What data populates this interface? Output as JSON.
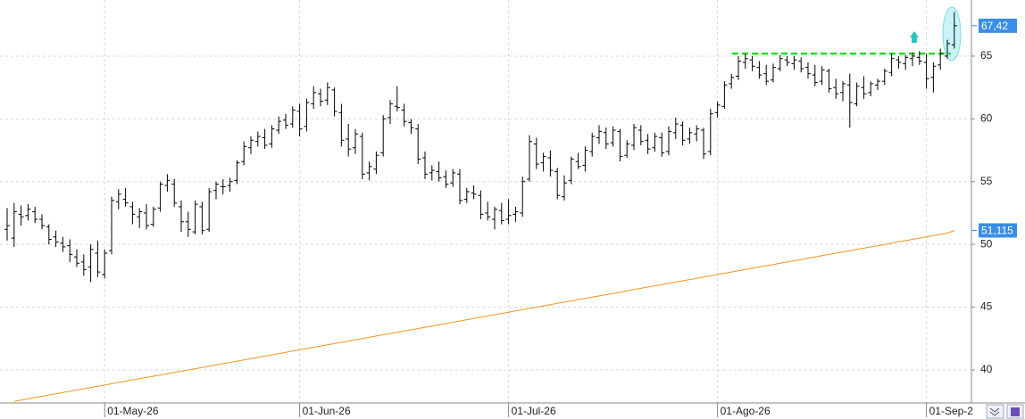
{
  "chart_data": {
    "type": "ohlc",
    "ylim": [
      37.37,
      69.47
    ],
    "yticks": [
      40,
      45,
      50,
      55,
      60,
      65
    ],
    "grid": true,
    "bar_color": "#000000",
    "categories": [
      null,
      null,
      null,
      null,
      null,
      null,
      null,
      null,
      null,
      null,
      null,
      null,
      null,
      null,
      "01-May-26",
      null,
      null,
      null,
      null,
      null,
      null,
      null,
      null,
      null,
      null,
      null,
      null,
      null,
      null,
      null,
      null,
      null,
      null,
      null,
      null,
      null,
      null,
      null,
      null,
      null,
      null,
      null,
      "01-Jun-26",
      null,
      null,
      null,
      null,
      null,
      null,
      null,
      null,
      null,
      null,
      null,
      null,
      null,
      null,
      null,
      null,
      null,
      null,
      null,
      null,
      null,
      null,
      null,
      null,
      null,
      null,
      null,
      null,
      null,
      "01-Jul-26",
      null,
      null,
      null,
      null,
      null,
      null,
      null,
      null,
      null,
      null,
      null,
      null,
      null,
      null,
      null,
      null,
      null,
      null,
      null,
      null,
      null,
      null,
      null,
      null,
      null,
      null,
      null,
      null,
      null,
      "01-Ago-26",
      null,
      null,
      null,
      null,
      null,
      null,
      null,
      null,
      null,
      null,
      null,
      null,
      null,
      null,
      null,
      null,
      null,
      null,
      null,
      null,
      null,
      null,
      null,
      null,
      null,
      null,
      null,
      null,
      null,
      "01-Sep-2",
      null,
      null,
      null,
      null
    ],
    "ohlc": [
      [
        51.2,
        52.9,
        50.3,
        51.5
      ],
      [
        50.5,
        53.3,
        49.8,
        52.6
      ],
      [
        52.4,
        53.1,
        51.5,
        52.2
      ],
      [
        52.3,
        53.2,
        51.9,
        52.8
      ],
      [
        52.6,
        53.0,
        51.7,
        52.0
      ],
      [
        52.0,
        52.4,
        51.2,
        51.5
      ],
      [
        51.4,
        51.6,
        50.0,
        50.4
      ],
      [
        50.6,
        51.1,
        49.8,
        50.2
      ],
      [
        50.1,
        50.6,
        49.4,
        49.8
      ],
      [
        49.9,
        50.4,
        48.6,
        49.2
      ],
      [
        49.0,
        49.6,
        48.2,
        48.5
      ],
      [
        48.6,
        49.2,
        47.5,
        48.0
      ],
      [
        48.2,
        50.0,
        47.0,
        49.6
      ],
      [
        49.3,
        50.3,
        47.4,
        47.8
      ],
      [
        47.6,
        49.6,
        47.3,
        49.3
      ],
      [
        49.5,
        53.8,
        49.2,
        53.5
      ],
      [
        53.4,
        54.4,
        52.8,
        54.0
      ],
      [
        53.6,
        54.5,
        53.0,
        53.3
      ],
      [
        53.0,
        53.4,
        51.6,
        52.4
      ],
      [
        52.2,
        52.9,
        51.3,
        52.6
      ],
      [
        52.5,
        53.2,
        51.2,
        51.5
      ],
      [
        51.6,
        53.0,
        51.4,
        52.8
      ],
      [
        52.9,
        55.0,
        52.6,
        54.8
      ],
      [
        54.7,
        55.6,
        54.2,
        55.1
      ],
      [
        54.8,
        55.2,
        53.0,
        53.3
      ],
      [
        53.0,
        53.5,
        51.0,
        51.8
      ],
      [
        51.8,
        52.6,
        50.6,
        51.2
      ],
      [
        51.0,
        53.5,
        50.8,
        53.2
      ],
      [
        53.0,
        53.4,
        50.8,
        51.1
      ],
      [
        51.2,
        54.5,
        51.0,
        54.2
      ],
      [
        54.3,
        55.0,
        53.6,
        54.8
      ],
      [
        54.6,
        55.2,
        54.0,
        54.6
      ],
      [
        54.7,
        55.3,
        54.2,
        55.0
      ],
      [
        55.1,
        56.7,
        54.8,
        56.5
      ],
      [
        56.6,
        58.2,
        56.3,
        57.8
      ],
      [
        57.7,
        58.6,
        57.2,
        58.3
      ],
      [
        58.2,
        59.0,
        57.8,
        58.6
      ],
      [
        58.5,
        59.2,
        57.6,
        57.9
      ],
      [
        58.0,
        59.5,
        57.7,
        59.2
      ],
      [
        59.1,
        60.2,
        58.8,
        59.8
      ],
      [
        59.9,
        60.4,
        59.2,
        59.5
      ],
      [
        59.6,
        61.0,
        59.3,
        60.7
      ],
      [
        60.6,
        61.2,
        58.6,
        59.2
      ],
      [
        59.4,
        61.6,
        59.0,
        61.3
      ],
      [
        61.2,
        62.6,
        60.8,
        62.1
      ],
      [
        62.0,
        62.4,
        61.0,
        61.4
      ],
      [
        61.5,
        62.9,
        61.1,
        62.5
      ],
      [
        62.3,
        62.5,
        60.2,
        60.6
      ],
      [
        60.5,
        61.2,
        57.8,
        58.3
      ],
      [
        58.4,
        59.6,
        57.0,
        57.6
      ],
      [
        57.7,
        59.2,
        57.2,
        58.8
      ],
      [
        58.6,
        58.9,
        55.2,
        55.6
      ],
      [
        55.7,
        56.6,
        55.1,
        56.2
      ],
      [
        56.0,
        57.4,
        55.6,
        57.1
      ],
      [
        57.3,
        60.3,
        57.0,
        60.0
      ],
      [
        60.1,
        61.5,
        59.6,
        61.2
      ],
      [
        61.0,
        62.6,
        60.6,
        60.9
      ],
      [
        60.7,
        61.2,
        59.4,
        59.8
      ],
      [
        59.7,
        60.0,
        58.8,
        59.3
      ],
      [
        59.2,
        59.6,
        56.4,
        56.8
      ],
      [
        56.9,
        57.4,
        55.2,
        55.6
      ],
      [
        55.7,
        56.3,
        55.1,
        55.9
      ],
      [
        55.8,
        56.6,
        55.0,
        55.3
      ],
      [
        55.4,
        55.9,
        54.5,
        54.8
      ],
      [
        54.9,
        56.0,
        54.6,
        55.7
      ],
      [
        55.6,
        56.0,
        53.2,
        53.5
      ],
      [
        53.6,
        54.5,
        53.3,
        54.2
      ],
      [
        54.1,
        54.7,
        53.6,
        54.0
      ],
      [
        53.9,
        54.3,
        52.0,
        52.4
      ],
      [
        52.5,
        53.4,
        51.9,
        52.2
      ],
      [
        52.0,
        53.0,
        51.2,
        52.8
      ],
      [
        52.7,
        53.3,
        51.6,
        51.9
      ],
      [
        52.0,
        53.6,
        51.6,
        52.3
      ],
      [
        52.4,
        53.0,
        51.8,
        52.6
      ],
      [
        52.5,
        55.4,
        52.2,
        55.0
      ],
      [
        55.2,
        58.7,
        55.0,
        58.2
      ],
      [
        58.0,
        58.5,
        56.0,
        56.4
      ],
      [
        56.5,
        57.3,
        55.8,
        57.0
      ],
      [
        56.9,
        57.5,
        55.4,
        55.9
      ],
      [
        55.8,
        56.1,
        53.6,
        53.9
      ],
      [
        53.8,
        55.5,
        53.5,
        54.9
      ],
      [
        55.1,
        57.0,
        54.8,
        56.8
      ],
      [
        56.6,
        57.3,
        56.0,
        56.2
      ],
      [
        56.3,
        57.8,
        55.8,
        57.5
      ],
      [
        57.4,
        58.9,
        57.0,
        58.6
      ],
      [
        58.5,
        59.5,
        58.0,
        59.0
      ],
      [
        58.9,
        59.3,
        57.6,
        58.0
      ],
      [
        58.1,
        59.4,
        57.8,
        59.1
      ],
      [
        59.0,
        59.2,
        56.6,
        57.0
      ],
      [
        57.1,
        58.3,
        56.9,
        58.0
      ],
      [
        57.9,
        59.6,
        57.5,
        59.3
      ],
      [
        59.1,
        59.5,
        57.9,
        58.2
      ],
      [
        58.3,
        58.8,
        57.2,
        57.6
      ],
      [
        57.7,
        58.9,
        57.4,
        58.6
      ],
      [
        58.5,
        58.9,
        57.0,
        57.3
      ],
      [
        57.4,
        59.4,
        57.1,
        59.0
      ],
      [
        58.9,
        60.1,
        58.4,
        59.6
      ],
      [
        59.5,
        59.8,
        57.9,
        58.3
      ],
      [
        58.4,
        59.3,
        58.0,
        58.9
      ],
      [
        58.8,
        59.5,
        58.2,
        59.2
      ],
      [
        59.1,
        59.3,
        56.8,
        57.2
      ],
      [
        57.4,
        60.8,
        57.1,
        60.4
      ],
      [
        60.5,
        61.4,
        60.1,
        61.1
      ],
      [
        61.0,
        63.0,
        60.8,
        62.7
      ],
      [
        62.8,
        63.6,
        62.4,
        63.3
      ],
      [
        63.4,
        65.0,
        63.1,
        64.6
      ],
      [
        64.5,
        65.2,
        64.0,
        64.8
      ],
      [
        64.7,
        65.0,
        63.8,
        64.2
      ],
      [
        64.1,
        64.6,
        63.2,
        63.5
      ],
      [
        63.6,
        64.3,
        62.7,
        63.0
      ],
      [
        63.1,
        64.4,
        62.9,
        64.1
      ],
      [
        64.0,
        65.1,
        63.8,
        64.8
      ],
      [
        64.7,
        65.0,
        64.2,
        64.5
      ],
      [
        64.4,
        65.0,
        63.9,
        64.7
      ],
      [
        64.6,
        64.9,
        63.7,
        64.0
      ],
      [
        64.1,
        64.5,
        63.2,
        63.6
      ],
      [
        63.5,
        64.3,
        62.6,
        62.9
      ],
      [
        63.0,
        64.2,
        62.7,
        63.9
      ],
      [
        63.8,
        64.0,
        62.1,
        62.4
      ],
      [
        62.5,
        63.2,
        61.6,
        62.0
      ],
      [
        62.1,
        63.0,
        61.4,
        62.8
      ],
      [
        62.7,
        63.6,
        59.3,
        61.3
      ],
      [
        61.2,
        62.9,
        61.0,
        62.6
      ],
      [
        62.5,
        63.4,
        61.6,
        62.0
      ],
      [
        62.1,
        63.0,
        61.8,
        62.8
      ],
      [
        62.7,
        63.2,
        62.3,
        63.0
      ],
      [
        63.0,
        64.0,
        62.7,
        63.8
      ],
      [
        63.7,
        65.2,
        63.4,
        64.8
      ],
      [
        64.7,
        65.0,
        64.0,
        64.5
      ],
      [
        64.4,
        65.1,
        63.9,
        64.9
      ],
      [
        64.8,
        65.3,
        64.2,
        65.0
      ],
      [
        64.9,
        65.4,
        64.3,
        64.6
      ],
      [
        64.5,
        65.2,
        62.4,
        63.2
      ],
      [
        63.3,
        64.5,
        62.1,
        64.2
      ],
      [
        64.3,
        65.6,
        63.9,
        65.2
      ],
      [
        65.0,
        66.3,
        64.8,
        66.0
      ],
      [
        65.9,
        68.5,
        65.6,
        67.42
      ]
    ],
    "ma": {
      "color": "#f0961e",
      "values": [
        null,
        37.5,
        37.6,
        37.7,
        37.8,
        37.9,
        38.0,
        38.1,
        38.2,
        38.3,
        38.4,
        38.5,
        38.6,
        38.7,
        38.8,
        38.9,
        39.0,
        39.1,
        39.2,
        39.3,
        39.4,
        39.5,
        39.6,
        39.7,
        39.8,
        39.9,
        40.0,
        40.1,
        40.2,
        40.3,
        40.4,
        40.5,
        40.6,
        40.7,
        40.8,
        40.9,
        41.0,
        41.1,
        41.2,
        41.3,
        41.4,
        41.5,
        41.6,
        41.7,
        41.8,
        41.9,
        42.0,
        42.1,
        42.2,
        42.3,
        42.4,
        42.5,
        42.6,
        42.7,
        42.8,
        42.9,
        43.0,
        43.1,
        43.2,
        43.3,
        43.4,
        43.5,
        43.6,
        43.7,
        43.8,
        43.9,
        44.0,
        44.1,
        44.2,
        44.3,
        44.4,
        44.5,
        44.6,
        44.7,
        44.8,
        44.9,
        45.0,
        45.1,
        45.2,
        45.3,
        45.4,
        45.5,
        45.6,
        45.7,
        45.8,
        45.9,
        46.0,
        46.1,
        46.2,
        46.3,
        46.4,
        46.5,
        46.6,
        46.7,
        46.8,
        46.9,
        47.0,
        47.1,
        47.2,
        47.3,
        47.4,
        47.5,
        47.6,
        47.7,
        47.8,
        47.9,
        48.0,
        48.1,
        48.2,
        48.3,
        48.4,
        48.5,
        48.6,
        48.7,
        48.8,
        48.9,
        49.0,
        49.1,
        49.2,
        49.3,
        49.4,
        49.5,
        49.6,
        49.7,
        49.8,
        49.9,
        50.0,
        50.1,
        50.2,
        50.3,
        50.4,
        50.5,
        50.6,
        50.7,
        50.8,
        50.9,
        51.115
      ]
    },
    "resistance": {
      "value": 65.2,
      "color": "#22dd22"
    },
    "last_labels": [
      {
        "value": 67.42,
        "label": "67,42"
      },
      {
        "value": 51.115,
        "label": "51,115"
      }
    ],
    "label_color": "#3a8ee6"
  }
}
